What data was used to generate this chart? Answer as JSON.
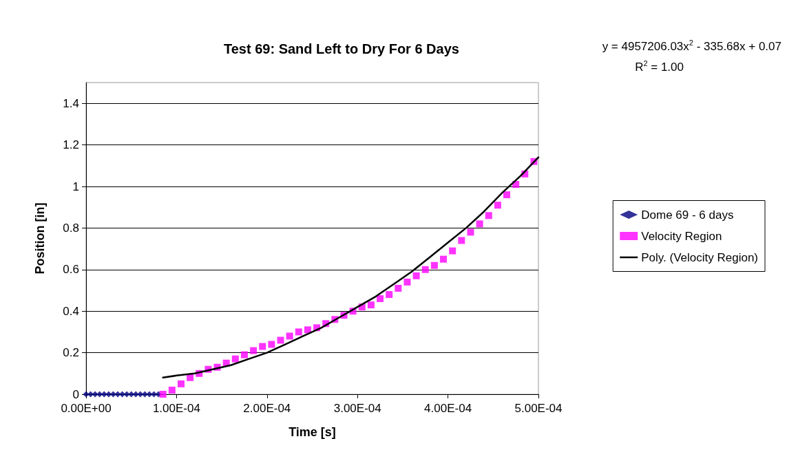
{
  "chart_data": {
    "type": "scatter",
    "title": "Test 69: Sand Left to Dry For 6 Days",
    "xlabel": "Time [s]",
    "ylabel": "Position [in]",
    "annotations": [
      "y = 4957206.03x$^{2}$ - 335.68x + 0.07",
      "R$^{2}$ = 1.00"
    ],
    "xlim": [
      0,
      0.0005
    ],
    "ylim": [
      0,
      1.5
    ],
    "xticks": [
      {
        "value": 0,
        "label": "0.00E+00"
      },
      {
        "value": 0.0001,
        "label": "1.00E-04"
      },
      {
        "value": 0.0002,
        "label": "2.00E-04"
      },
      {
        "value": 0.0003,
        "label": "3.00E-04"
      },
      {
        "value": 0.0004,
        "label": "4.00E-04"
      },
      {
        "value": 0.0005,
        "label": "5.00E-04"
      }
    ],
    "yticks": [
      0,
      0.2,
      0.4,
      0.6,
      0.8,
      1,
      1.2,
      1.4
    ],
    "grid": "y",
    "legend": "right",
    "series": [
      {
        "name": "Dome 69 - 6 days",
        "marker": "diamond",
        "color": "#000080",
        "x": [
          0,
          5e-06,
          1e-05,
          1.5e-05,
          2e-05,
          2.5e-05,
          3e-05,
          3.5e-05,
          4e-05,
          4.5e-05,
          5e-05,
          5.5e-05,
          6e-05,
          6.5e-05,
          7e-05,
          7.5e-05,
          8e-05
        ],
        "values": [
          0,
          0,
          0,
          0,
          0,
          0,
          0,
          0,
          0,
          0,
          0,
          0,
          0,
          0,
          0,
          0,
          0
        ]
      },
      {
        "name": "Velocity Region",
        "marker": "square",
        "color": "#ff00ff",
        "x": [
          8.5e-05,
          9.5e-05,
          0.000105,
          0.000115,
          0.000125,
          0.000135,
          0.000145,
          0.000155,
          0.000165,
          0.000175,
          0.000185,
          0.000195,
          0.000205,
          0.000215,
          0.000225,
          0.000235,
          0.000245,
          0.000255,
          0.000265,
          0.000275,
          0.000285,
          0.000295,
          0.000305,
          0.000315,
          0.000325,
          0.000335,
          0.000345,
          0.000355,
          0.000365,
          0.000375,
          0.000385,
          0.000395,
          0.000405,
          0.000415,
          0.000425,
          0.000435,
          0.000445,
          0.000455,
          0.000465,
          0.000475,
          0.000485,
          0.000495
        ],
        "values": [
          0,
          0.02,
          0.05,
          0.08,
          0.1,
          0.12,
          0.13,
          0.15,
          0.17,
          0.19,
          0.21,
          0.23,
          0.24,
          0.26,
          0.28,
          0.3,
          0.31,
          0.32,
          0.34,
          0.36,
          0.38,
          0.4,
          0.42,
          0.43,
          0.46,
          0.48,
          0.51,
          0.54,
          0.57,
          0.6,
          0.62,
          0.65,
          0.69,
          0.74,
          0.78,
          0.82,
          0.86,
          0.91,
          0.96,
          1.01,
          1.06,
          1.12
        ]
      },
      {
        "name": "Poly. (Velocity Region)",
        "type": "line",
        "marker": "none",
        "line_style": "solid",
        "color": "#000000",
        "x": [
          8.5e-05,
          0.0001,
          0.00012,
          0.00014,
          0.00016,
          0.00018,
          0.0002,
          0.00022,
          0.00024,
          0.00026,
          0.00028,
          0.0003,
          0.00032,
          0.00034,
          0.00036,
          0.00038,
          0.0004,
          0.00042,
          0.00044,
          0.00046,
          0.00048,
          0.0005
        ],
        "values": [
          0.08,
          0.09,
          0.1,
          0.12,
          0.14,
          0.17,
          0.2,
          0.24,
          0.28,
          0.32,
          0.37,
          0.42,
          0.47,
          0.53,
          0.59,
          0.66,
          0.73,
          0.8,
          0.88,
          0.97,
          1.05,
          1.14
        ]
      }
    ]
  }
}
